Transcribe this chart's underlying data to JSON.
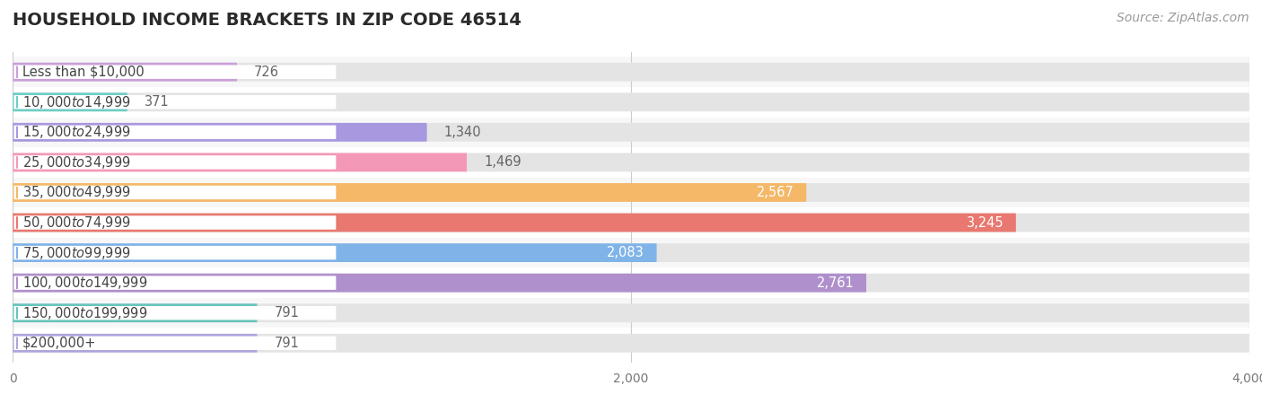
{
  "title": "HOUSEHOLD INCOME BRACKETS IN ZIP CODE 46514",
  "source": "Source: ZipAtlas.com",
  "categories": [
    "Less than $10,000",
    "$10,000 to $14,999",
    "$15,000 to $24,999",
    "$25,000 to $34,999",
    "$35,000 to $49,999",
    "$50,000 to $74,999",
    "$75,000 to $99,999",
    "$100,000 to $149,999",
    "$150,000 to $199,999",
    "$200,000+"
  ],
  "values": [
    726,
    371,
    1340,
    1469,
    2567,
    3245,
    2083,
    2761,
    791,
    791
  ],
  "bar_colors": [
    "#c8a0d8",
    "#6dcec4",
    "#a898e0",
    "#f498b8",
    "#f4b868",
    "#e87870",
    "#80b4e8",
    "#b090cc",
    "#68c4bc",
    "#b0a4dc"
  ],
  "value_colors_inside": [
    "#888888",
    "#888888",
    "#888888",
    "#888888",
    "#f0e0a0",
    "#f0d0d0",
    "#888888",
    "#f0e8f8",
    "#888888",
    "#888888"
  ],
  "xlim": [
    0,
    4000
  ],
  "background_color": "#ffffff",
  "row_bg_even": "#f7f7f7",
  "row_bg_odd": "#ffffff",
  "track_color": "#e4e4e4",
  "title_fontsize": 14,
  "label_fontsize": 10.5,
  "value_fontsize": 10.5,
  "source_fontsize": 10
}
